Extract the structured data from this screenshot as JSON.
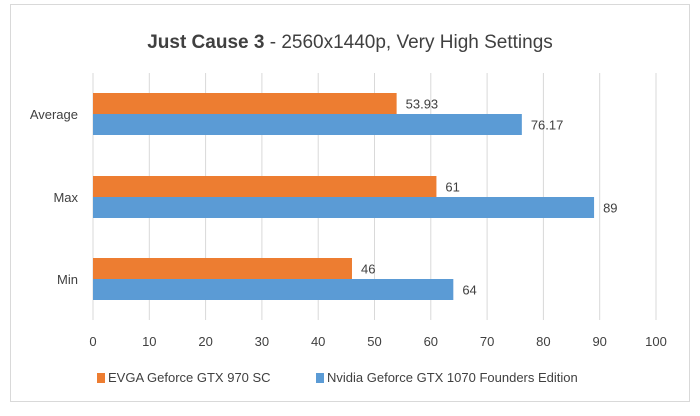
{
  "chart_data": {
    "type": "bar",
    "orientation": "horizontal",
    "title_bold": "Just Cause 3",
    "title_rest": " - 2560x1440p, Very High Settings",
    "categories": [
      "Average",
      "Max",
      "Min"
    ],
    "series": [
      {
        "name": "EVGA Geforce GTX 970 SC",
        "values": [
          53.93,
          61,
          46
        ],
        "labels": [
          "53.93",
          "61",
          "46"
        ],
        "color": "#ed7d31"
      },
      {
        "name": "Nvidia Geforce GTX 1070 Founders Edition",
        "values": [
          76.17,
          89,
          64
        ],
        "labels": [
          "76.17",
          "89",
          "64"
        ],
        "color": "#5b9bd5"
      }
    ],
    "xlim": [
      0,
      100
    ],
    "xticks": [
      "0",
      "10",
      "20",
      "30",
      "40",
      "50",
      "60",
      "70",
      "80",
      "90",
      "100"
    ],
    "grid": true,
    "legend": "bottom"
  }
}
